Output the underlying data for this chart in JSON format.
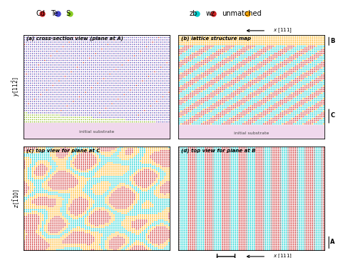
{
  "panel_a_title": "(a) cross-section view (plane at A)",
  "panel_b_title": "(b) lattice structure map",
  "panel_c_title": "(c) top view for plane at C",
  "panel_d_title": "(d) top view for plane at B",
  "substrate_color": "#f0d8ec",
  "background_color": "#ffffff",
  "color_zb": "#00cccc",
  "color_wz": "#cc2222",
  "color_unmatched": "#ffaa00",
  "color_purple": "#9966bb",
  "color_blue": "#5555bb",
  "color_red": "#cc3333",
  "color_green": "#88bb22",
  "color_yellow_green": "#aacc44",
  "legend_left_labels": [
    "Cd",
    "Te",
    "S"
  ],
  "legend_left_colors": [
    "#cc2222",
    "#4444cc",
    "#88cc22"
  ],
  "legend_right_labels": [
    "zb",
    "wz",
    "unmatched"
  ],
  "legend_right_colors": [
    "#00cccc",
    "#cc2222",
    "#ffaa00"
  ]
}
